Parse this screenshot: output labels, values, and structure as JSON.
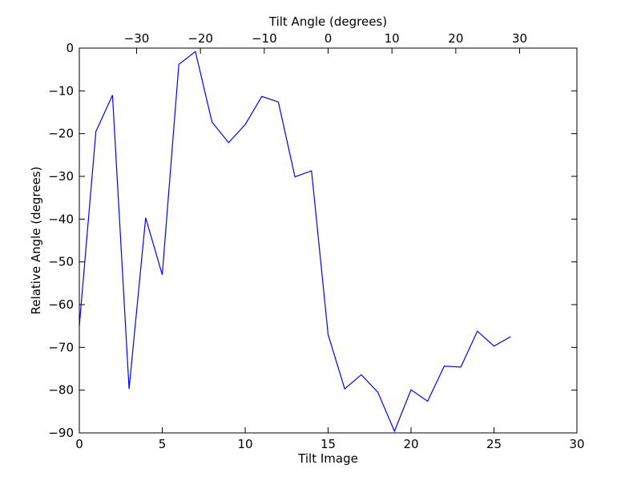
{
  "chart_data": {
    "type": "line",
    "xlabel": "Tilt Image",
    "ylabel": "Relative Angle (degrees)",
    "top_xlabel": "Tilt Angle (degrees)",
    "xlim": [
      0,
      30
    ],
    "ylim": [
      -90,
      0
    ],
    "top_xlim": [
      -38.97,
      38.97
    ],
    "x_ticks": [
      0,
      5,
      10,
      15,
      20,
      25,
      30
    ],
    "y_ticks": [
      0,
      -10,
      -20,
      -30,
      -40,
      -50,
      -60,
      -70,
      -80,
      -90
    ],
    "top_x_ticks": [
      -30,
      -20,
      -10,
      0,
      10,
      20,
      30
    ],
    "grid": false,
    "line_color": "#0000ff",
    "series": [
      {
        "x": [
          0,
          1,
          2,
          3,
          4,
          5,
          6,
          7,
          8,
          9,
          10,
          11,
          12,
          13,
          14,
          15,
          16,
          17,
          18,
          19,
          20,
          21,
          22,
          23,
          24,
          25,
          26
        ],
        "values": [
          -65.0,
          -19.5,
          -11.0,
          -79.7,
          -39.7,
          -53.0,
          -3.8,
          -0.8,
          -17.3,
          -22.1,
          -17.9,
          -11.3,
          -12.6,
          -30.1,
          -28.7,
          -67.0,
          -79.7,
          -76.4,
          -80.5,
          -89.6,
          -79.9,
          -82.6,
          -74.4,
          -74.6,
          -66.2,
          -69.7,
          -67.5
        ]
      }
    ]
  }
}
